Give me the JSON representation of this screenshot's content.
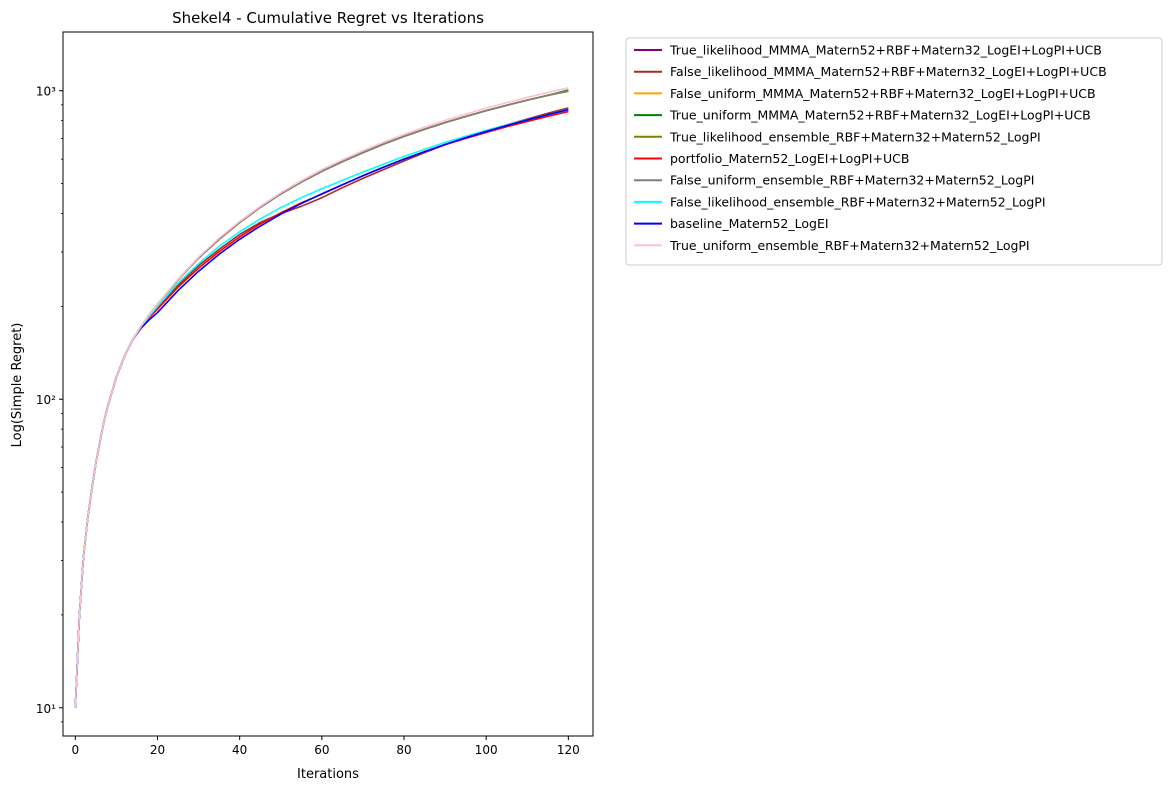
{
  "chart_data": {
    "type": "line",
    "title": "Shekel4 - Cumulative Regret vs Iterations",
    "xlabel": "Iterations",
    "ylabel": "Log(Simple Regret)",
    "yscale": "log",
    "xlim": [
      -3,
      126
    ],
    "ylim": [
      8.1,
      1550
    ],
    "x_ticks": [
      0,
      20,
      40,
      60,
      80,
      100,
      120
    ],
    "y_ticks": [
      {
        "value": 10,
        "label": "10¹"
      },
      {
        "value": 100,
        "label": "10²"
      },
      {
        "value": 1000,
        "label": "10³"
      }
    ],
    "grid": false,
    "legend": "outside-right",
    "x": [
      0,
      1,
      2,
      3,
      4,
      5,
      6,
      7,
      8,
      10,
      12,
      14,
      16,
      18,
      20,
      25,
      30,
      35,
      40,
      45,
      50,
      55,
      60,
      65,
      70,
      75,
      80,
      85,
      90,
      95,
      100,
      105,
      110,
      115,
      120
    ],
    "series": [
      {
        "name": "True_likelihood_MMMA_Matern52+RBF+Matern32_LogEI+LogPI+UCB",
        "color": "#800080",
        "values": [
          10,
          20,
          31,
          41,
          51,
          62,
          73,
          85,
          96,
          118,
          138,
          156,
          172,
          188,
          203,
          244,
          287,
          330,
          374,
          419,
          463,
          506,
          548,
          589,
          630,
          671,
          711,
          750,
          788,
          825,
          862,
          897,
          932,
          966,
          1000
        ]
      },
      {
        "name": "False_likelihood_MMMA_Matern52+RBF+Matern32_LogEI+LogPI+UCB",
        "color": "#a52a2a",
        "values": [
          10,
          20,
          31,
          41,
          51,
          62,
          73,
          85,
          96,
          118,
          138,
          156,
          171,
          185,
          199,
          234,
          271,
          306,
          342,
          374,
          400,
          422,
          450,
          485,
          520,
          555,
          592,
          630,
          668,
          705,
          740,
          775,
          810,
          845,
          880
        ]
      },
      {
        "name": "False_uniform_MMMA_Matern52+RBF+Matern32_LogEI+LogPI+UCB",
        "color": "#ffa500",
        "values": [
          10,
          20,
          31,
          41,
          51,
          62,
          73,
          85,
          96,
          118,
          138,
          156,
          172,
          188,
          203,
          244,
          287,
          330,
          374,
          419,
          463,
          506,
          548,
          589,
          630,
          671,
          711,
          750,
          788,
          825,
          862,
          897,
          932,
          966,
          1000
        ]
      },
      {
        "name": "True_uniform_MMMA_Matern52+RBF+Matern32_LogEI+LogPI+UCB",
        "color": "#008000",
        "values": [
          10,
          20,
          31,
          41,
          51,
          62,
          73,
          85,
          96,
          118,
          138,
          156,
          172,
          188,
          203,
          244,
          287,
          330,
          374,
          419,
          463,
          506,
          548,
          589,
          630,
          671,
          711,
          750,
          788,
          825,
          862,
          897,
          932,
          966,
          1005
        ]
      },
      {
        "name": "True_likelihood_ensemble_RBF+Matern32+Matern52_LogPI",
        "color": "#808000",
        "values": [
          10,
          20,
          31,
          41,
          51,
          62,
          73,
          85,
          96,
          118,
          138,
          156,
          172,
          188,
          203,
          244,
          287,
          330,
          374,
          419,
          463,
          506,
          548,
          589,
          630,
          671,
          711,
          750,
          788,
          825,
          862,
          897,
          932,
          966,
          995
        ]
      },
      {
        "name": "portfolio_Matern52_LogEI+LogPI+UCB",
        "color": "#ff0000",
        "values": [
          10,
          20,
          31,
          41,
          51,
          62,
          73,
          85,
          96,
          118,
          138,
          156,
          171,
          184,
          196,
          231,
          266,
          301,
          336,
          370,
          402,
          433,
          462,
          495,
          530,
          565,
          600,
          635,
          668,
          700,
          732,
          764,
          795,
          826,
          856
        ]
      },
      {
        "name": "False_uniform_ensemble_RBF+Matern32+Matern52_LogPI",
        "color": "#808080",
        "values": [
          10,
          20,
          31,
          41,
          51,
          62,
          73,
          85,
          96,
          118,
          138,
          156,
          172,
          188,
          203,
          244,
          287,
          330,
          374,
          419,
          463,
          506,
          548,
          589,
          630,
          671,
          711,
          750,
          788,
          825,
          862,
          897,
          932,
          966,
          1000
        ]
      },
      {
        "name": "False_likelihood_ensemble_RBF+Matern32+Matern52_LogPI",
        "color": "#00ffff",
        "values": [
          10,
          20,
          31,
          41,
          51,
          62,
          73,
          85,
          96,
          118,
          138,
          156,
          171,
          186,
          200,
          238,
          275,
          313,
          349,
          384,
          418,
          450,
          481,
          512,
          545,
          578,
          612,
          646,
          680,
          712,
          744,
          775,
          806,
          836,
          865
        ]
      },
      {
        "name": "baseline_Matern52_LogEI",
        "color": "#0000ff",
        "values": [
          10,
          20,
          31,
          41,
          51,
          62,
          73,
          85,
          96,
          118,
          138,
          156,
          170,
          181,
          191,
          225,
          260,
          295,
          330,
          364,
          398,
          431,
          463,
          496,
          530,
          565,
          600,
          635,
          670,
          704,
          738,
          771,
          804,
          836,
          868
        ]
      },
      {
        "name": "True_uniform_ensemble_RBF+Matern32+Matern52_LogPI",
        "color": "#ffc0cb",
        "values": [
          10,
          20,
          31,
          41,
          51,
          62,
          73,
          85,
          96,
          118,
          138,
          156,
          172,
          188,
          203,
          245,
          289,
          333,
          377,
          422,
          467,
          511,
          555,
          597,
          639,
          681,
          722,
          762,
          801,
          840,
          878,
          915,
          951,
          987,
          1022
        ]
      }
    ]
  }
}
